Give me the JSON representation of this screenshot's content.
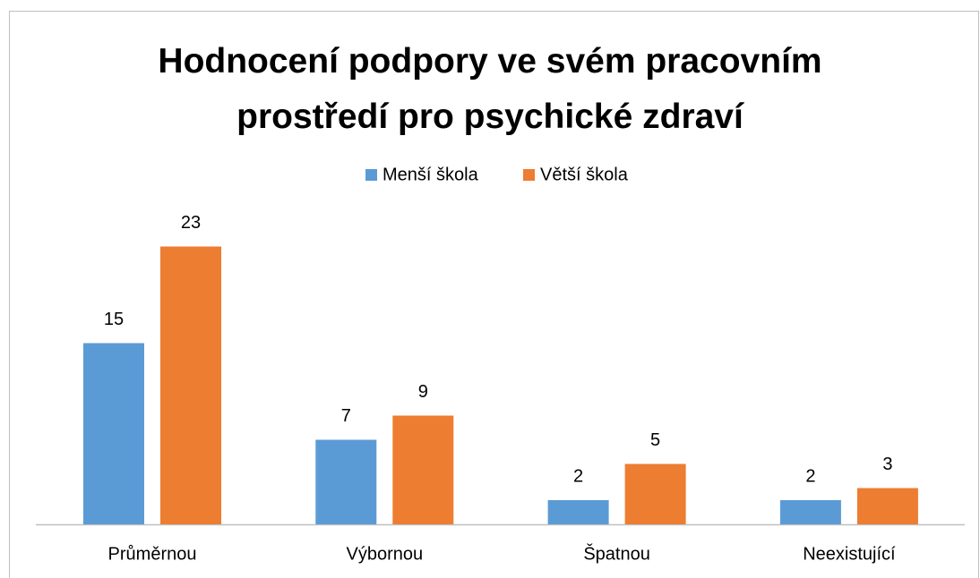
{
  "chart_data": {
    "type": "bar",
    "title": "Hodnocení podpory ve svém pracovním prostředí pro psychické zdraví",
    "categories": [
      "Průměrnou",
      "Výbornou",
      "Špatnou",
      "Neexistující"
    ],
    "series": [
      {
        "name": "Menší škola",
        "color": "#5b9bd5",
        "values": [
          15,
          7,
          2,
          2
        ]
      },
      {
        "name": "Větší škola",
        "color": "#ed7d31",
        "values": [
          23,
          9,
          5,
          3
        ]
      }
    ],
    "legend": "top"
  }
}
